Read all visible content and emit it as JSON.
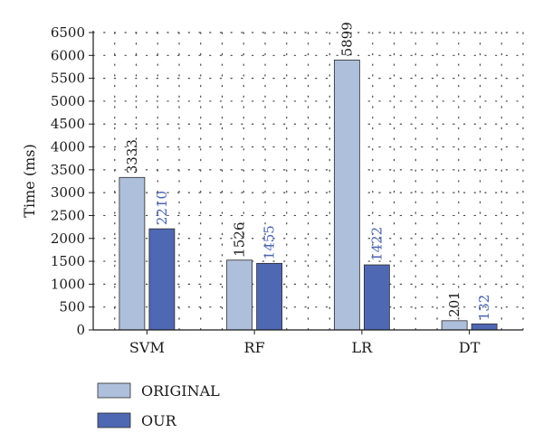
{
  "chart_data": {
    "type": "bar",
    "categories": [
      "SVM",
      "RF",
      "LR",
      "DT"
    ],
    "series": [
      {
        "name": "ORIGINAL",
        "values": [
          3333,
          1526,
          5899,
          201
        ],
        "color": "#aebfdc",
        "label_color": "#1a1a1a"
      },
      {
        "name": "OUR",
        "values": [
          2210,
          1455,
          1422,
          132
        ],
        "color": "#4f68b4",
        "label_color": "#4a64b0"
      }
    ],
    "title": "",
    "xlabel": "",
    "ylabel": "Time (ms)",
    "ylim": [
      0,
      6500
    ],
    "yticks": [
      0,
      500,
      1000,
      1500,
      2000,
      2500,
      3000,
      3500,
      4000,
      4500,
      5000,
      5500,
      6000,
      6500
    ],
    "grid": "dotted",
    "legend_position": "bottom-left"
  }
}
